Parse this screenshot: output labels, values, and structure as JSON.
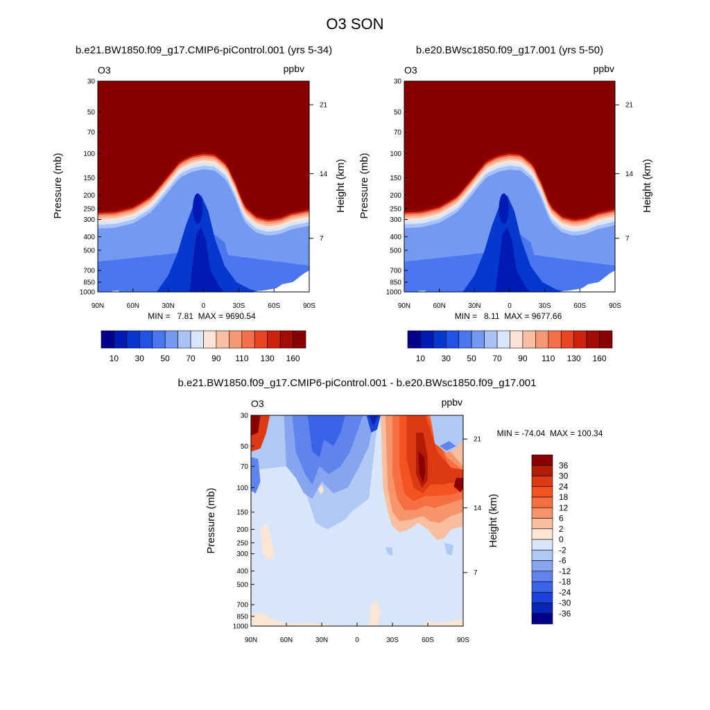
{
  "title": "O3 SON",
  "chart_data": [
    {
      "type": "heatmap",
      "title": "b.e21.BW1850.f09_g17.CMIP6-piControl.001 (yrs 5-34)",
      "variable": "O3",
      "units": "ppbv",
      "ylabel": "Pressure (mb)",
      "ylabel_right": "Height (km)",
      "xticks": [
        "90N",
        "60N",
        "30N",
        "0",
        "30S",
        "60S",
        "90S"
      ],
      "yticks": [
        "30",
        "50",
        "70",
        "100",
        "150",
        "200",
        "250",
        "300",
        "400",
        "500",
        "700",
        "850",
        "1000"
      ],
      "yticks_right": [
        "21",
        "14",
        "7"
      ],
      "min_max_text": "MIN =   7.81  MAX = 9690.54",
      "min": 7.81,
      "max": 9690.54,
      "colorbar_labels": [
        "10",
        "30",
        "50",
        "70",
        "90",
        "110",
        "130",
        "160"
      ],
      "tropopause_profile": [
        [
          90,
          262
        ],
        [
          75,
          258
        ],
        [
          60,
          240
        ],
        [
          45,
          200
        ],
        [
          35,
          160
        ],
        [
          28,
          135
        ],
        [
          20,
          112
        ],
        [
          10,
          102
        ],
        [
          0,
          98
        ],
        [
          -10,
          100
        ],
        [
          -20,
          118
        ],
        [
          -28,
          165
        ],
        [
          -35,
          235
        ],
        [
          -45,
          280
        ],
        [
          -55,
          295
        ],
        [
          -65,
          287
        ],
        [
          -75,
          265
        ],
        [
          -90,
          250
        ]
      ]
    },
    {
      "type": "heatmap",
      "title": "b.e20.BWsc1850.f09_g17.001 (yrs 5-50)",
      "variable": "O3",
      "units": "ppbv",
      "ylabel": "Pressure (mb)",
      "ylabel_right": "Height (km)",
      "xticks": [
        "90N",
        "60N",
        "30N",
        "0",
        "30S",
        "60S",
        "90S"
      ],
      "yticks": [
        "30",
        "50",
        "70",
        "100",
        "150",
        "200",
        "250",
        "300",
        "400",
        "500",
        "700",
        "850",
        "1000"
      ],
      "yticks_right": [
        "21",
        "14",
        "7"
      ],
      "min_max_text": "MIN =   8.11  MAX = 9677.66",
      "min": 8.11,
      "max": 9677.66,
      "colorbar_labels": [
        "10",
        "30",
        "50",
        "70",
        "90",
        "110",
        "130",
        "160"
      ],
      "tropopause_profile": [
        [
          90,
          260
        ],
        [
          75,
          256
        ],
        [
          60,
          238
        ],
        [
          45,
          200
        ],
        [
          35,
          160
        ],
        [
          28,
          135
        ],
        [
          20,
          112
        ],
        [
          10,
          102
        ],
        [
          0,
          98
        ],
        [
          -10,
          100
        ],
        [
          -20,
          118
        ],
        [
          -28,
          165
        ],
        [
          -35,
          235
        ],
        [
          -45,
          280
        ],
        [
          -55,
          295
        ],
        [
          -65,
          287
        ],
        [
          -75,
          265
        ],
        [
          -90,
          248
        ]
      ]
    },
    {
      "type": "heatmap",
      "title": "b.e21.BW1850.f09_g17.CMIP6-piControl.001 - b.e20.BWsc1850.f09_g17.001",
      "variable": "O3",
      "units": "ppbv",
      "ylabel": "Pressure (mb)",
      "ylabel_right": "Height (km)",
      "xticks": [
        "90N",
        "60N",
        "30N",
        "0",
        "30S",
        "60S",
        "90S"
      ],
      "yticks": [
        "30",
        "50",
        "70",
        "100",
        "150",
        "200",
        "250",
        "300",
        "400",
        "500",
        "700",
        "850",
        "1000"
      ],
      "yticks_right": [
        "21",
        "14",
        "7"
      ],
      "min_max_text": "MIN = -74.04  MAX = 100.34",
      "min": -74.04,
      "max": 100.34,
      "colorbar_labels": [
        "36",
        "30",
        "24",
        "18",
        "12",
        "6",
        "2",
        "0",
        "-2",
        "-6",
        "-12",
        "-18",
        "-24",
        "-30",
        "-36"
      ]
    }
  ],
  "colors": {
    "absolute_levels": [
      "#00008a",
      "#001bb3",
      "#0638d0",
      "#2154e6",
      "#4a77ef",
      "#7399f2",
      "#a9c3f6",
      "#d8e6fb",
      "#fde3d6",
      "#f9bfa4",
      "#f59875",
      "#f3704a",
      "#ea4523",
      "#cc220e",
      "#a40b03",
      "#8a0000"
    ],
    "difference_levels": [
      "#8a0000",
      "#b21b05",
      "#dd3914",
      "#f4531f",
      "#f56f42",
      "#f6946a",
      "#f8bf9f",
      "#fde5d6",
      "#d7e6f8",
      "#b0c8f4",
      "#86a4ef",
      "#5f84ed",
      "#3a63e8",
      "#1b43db",
      "#0725b6",
      "#00008a"
    ]
  }
}
